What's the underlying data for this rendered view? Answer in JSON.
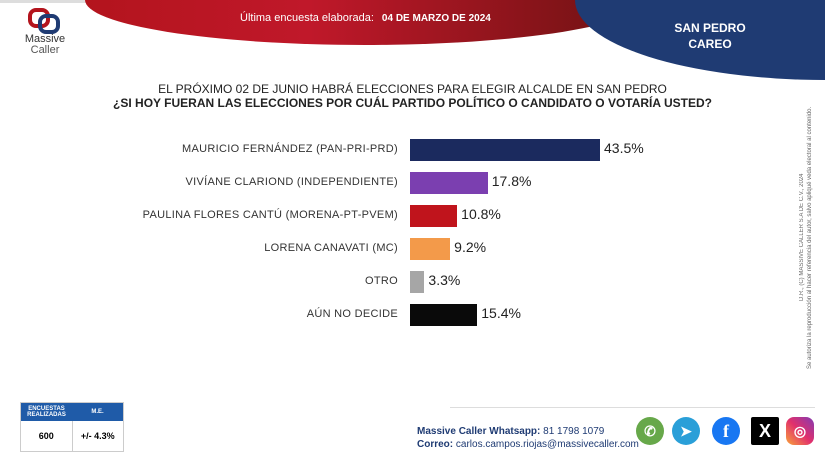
{
  "header": {
    "brand_line1": "Massive",
    "brand_line2": "Caller",
    "survey_label": "Última encuesta elaborada:",
    "survey_date": "04 DE MARZO DE 2024",
    "place_line1": "SAN PEDRO",
    "place_line2": "CAREO"
  },
  "question": {
    "line1": "EL PRÓXIMO 02 DE JUNIO HABRÁ ELECCIONES PARA ELEGIR ALCALDE EN SAN PEDRO",
    "line2": "¿SI HOY FUERAN LAS ELECCIONES POR CUÁL PARTIDO POLÍTICO O CANDIDATO O VOTARÍA USTED?"
  },
  "chart_data": {
    "type": "bar",
    "orientation": "horizontal",
    "categories": [
      "MAURICIO FERNÁNDEZ (PAN-PRI-PRD)",
      "VIVÍANE CLARIOND (INDEPENDIENTE)",
      "PAULINA FLORES CANTÚ (MORENA-PT-PVEM)",
      "LORENA CANAVATI (MC)",
      "OTRO",
      "AÚN NO DECIDE"
    ],
    "values": [
      43.5,
      17.8,
      10.8,
      9.2,
      3.3,
      15.4
    ],
    "labels": [
      "43.5%",
      "17.8%",
      "10.8%",
      "9.2%",
      "3.3%",
      "15.4%"
    ],
    "colors": [
      "#1b2a5e",
      "#7b3fb0",
      "#c0141c",
      "#f39a4a",
      "#a6a6a6",
      "#0a0a0a"
    ]
  },
  "copyright": {
    "line1": "D.R., (C) MASSIVE CALLER S.A DE C.V., 2024",
    "line2": "Se autoriza la reproducción al hacer referencia del autor, salvo apliqué veda electoral al contenido."
  },
  "stats": {
    "h1": "ENCUESTAS REALIZADAS",
    "h2": "M.E.",
    "v1": "600",
    "v2": "+/- 4.3%"
  },
  "contact": {
    "whatsapp_label": "Massive Caller Whatsapp:",
    "whatsapp": "81 1798 1079",
    "email_label": "Correo:",
    "email": "carlos.campos.riojas@massivecaller.com"
  }
}
